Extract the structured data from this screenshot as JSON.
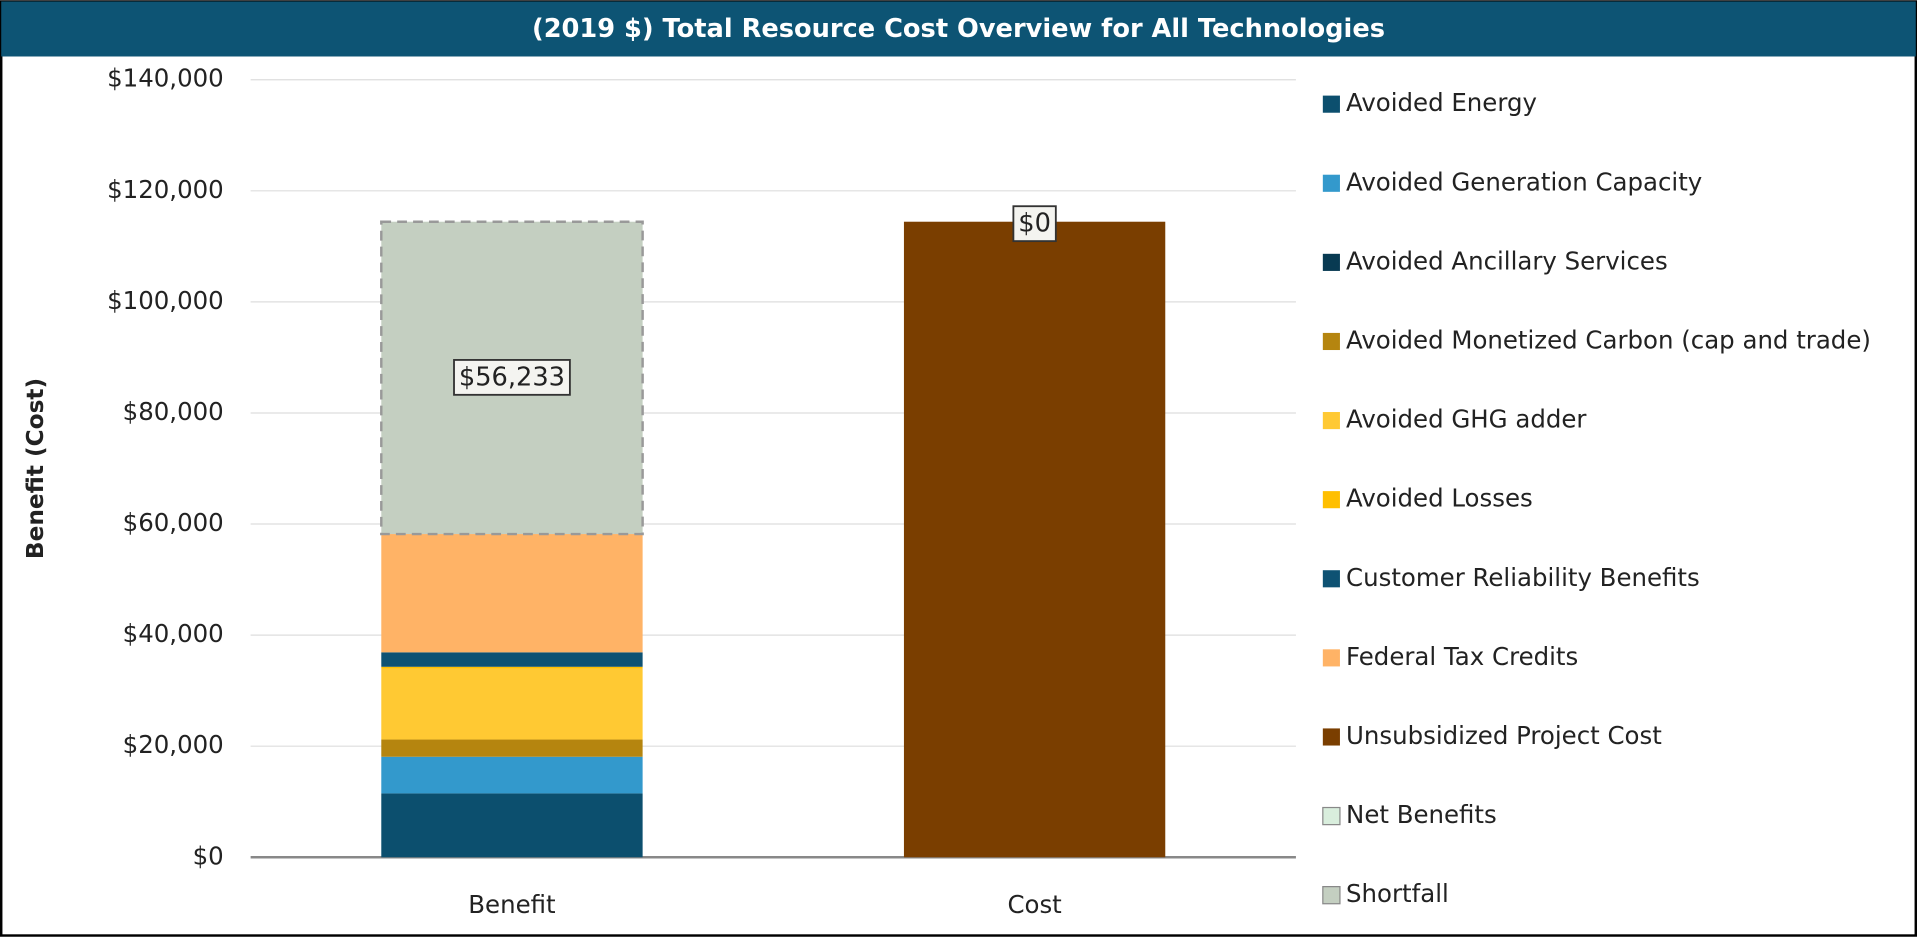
{
  "chart_data": {
    "type": "stacked_bar",
    "title": "(2019 $) Total Resource Cost Overview for All Technologies",
    "y_label": "Benefit (Cost)",
    "categories": [
      "Benefit",
      "Cost"
    ],
    "ylim": [
      0,
      140000
    ],
    "yticks": [
      {
        "value": 0,
        "label": "$0"
      },
      {
        "value": 20000,
        "label": "$20,000"
      },
      {
        "value": 40000,
        "label": "$40,000"
      },
      {
        "value": 60000,
        "label": "$60,000"
      },
      {
        "value": 80000,
        "label": "$80,000"
      },
      {
        "value": 100000,
        "label": "$100,000"
      },
      {
        "value": 120000,
        "label": "$120,000"
      },
      {
        "value": 140000,
        "label": "$140,000"
      }
    ],
    "grid": true,
    "series": [
      {
        "name": "Avoided Energy",
        "color": "#0c4f6e",
        "values": [
          11500,
          null
        ]
      },
      {
        "name": "Avoided Generation Capacity",
        "color": "#3399cc",
        "values": [
          6600,
          null
        ]
      },
      {
        "name": "Avoided Ancillary Services",
        "color": "#083a52",
        "values": [
          0,
          null
        ]
      },
      {
        "name": "Avoided Monetized Carbon (cap and trade)",
        "color": "#b5850f",
        "values": [
          3100,
          null
        ]
      },
      {
        "name": "Avoided GHG adder",
        "color": "#ffc933",
        "values": [
          12800,
          null
        ]
      },
      {
        "name": "Avoided Losses",
        "color": "#ffbf00",
        "values": [
          300,
          null
        ]
      },
      {
        "name": "Customer Reliability Benefits",
        "color": "#0e5273",
        "values": [
          2600,
          null
        ]
      },
      {
        "name": "Federal Tax Credits",
        "color": "#ffb366",
        "values": [
          21300,
          null
        ]
      },
      {
        "name": "Unsubsidized Project Cost",
        "color": "#7a3e00",
        "values": [
          null,
          114433
        ]
      },
      {
        "name": "Net Benefits",
        "color": "#d9eedd",
        "values": [
          null,
          0
        ],
        "value_labels": [
          null,
          "$0"
        ]
      },
      {
        "name": "Shortfall",
        "color": "#c4cfc1",
        "values": [
          56233,
          null
        ],
        "value_labels": [
          "$56,233",
          null
        ]
      }
    ]
  }
}
